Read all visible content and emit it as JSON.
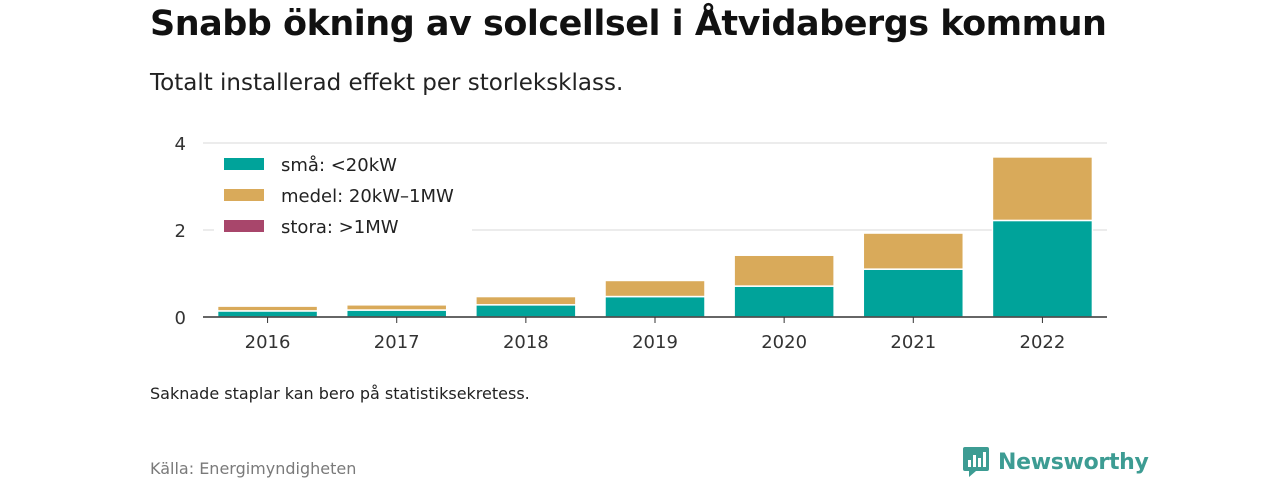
{
  "title": "Snabb ökning av solcellsel i Åtvidabergs kommun",
  "subtitle": "Totalt installerad effekt per storleksklass.",
  "footnote": "Saknade staplar kan bero på statistiksekretess.",
  "source": "Källa: Energimyndigheten",
  "brand": {
    "name": "Newsworthy",
    "icon": "newsworthy-logo-icon",
    "color": "#3d9c93"
  },
  "chart_data": {
    "type": "bar",
    "stacked": true,
    "categories": [
      "2016",
      "2017",
      "2018",
      "2019",
      "2020",
      "2021",
      "2022"
    ],
    "series": [
      {
        "name": "små: <20kW",
        "color": "#00a39a",
        "values": [
          0.14,
          0.16,
          0.28,
          0.47,
          0.71,
          1.1,
          2.22
        ]
      },
      {
        "name": "medel: 20kW–1MW",
        "color": "#d9aa5a",
        "values": [
          0.11,
          0.12,
          0.19,
          0.37,
          0.71,
          0.83,
          1.46
        ]
      },
      {
        "name": "stora: >1MW",
        "color": "#a8466b",
        "values": [
          0,
          0,
          0,
          0,
          0,
          0,
          0
        ]
      }
    ],
    "yticks": [
      0,
      2,
      4
    ],
    "ylim": [
      0,
      4
    ],
    "xlabel": "",
    "ylabel": "",
    "grid": true,
    "legend_position": "top-left"
  }
}
